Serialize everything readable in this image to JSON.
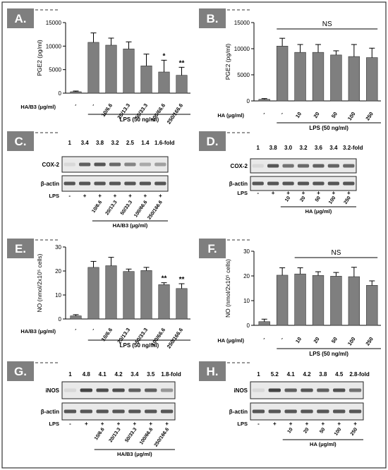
{
  "panels": [
    {
      "id": "A",
      "label": "A."
    },
    {
      "id": "B",
      "label": "B."
    },
    {
      "id": "C",
      "label": "C."
    },
    {
      "id": "D",
      "label": "D."
    },
    {
      "id": "E",
      "label": "E."
    },
    {
      "id": "F",
      "label": "F."
    },
    {
      "id": "G",
      "label": "G."
    },
    {
      "id": "H",
      "label": "H."
    }
  ],
  "chart_data": [
    {
      "panel": "A",
      "type": "bar",
      "ylabel": "PGE2 (pg/ml)",
      "row_label": "HA/B3 (μg/ml)",
      "categories": [
        "-",
        "-",
        "10/6.6",
        "20/13.3",
        "50/33.3",
        "100/66.6",
        "250/166.6"
      ],
      "values": [
        300,
        10800,
        10200,
        9400,
        5800,
        4500,
        3800
      ],
      "errors": [
        150,
        2000,
        1500,
        1500,
        2500,
        2500,
        1700
      ],
      "annotations": [
        "",
        "",
        "",
        "",
        "",
        "*",
        "**"
      ],
      "ylim": [
        0,
        15000
      ],
      "yticks": [
        "0",
        "5000",
        "10000",
        "15000"
      ],
      "lps_label": "LPS (50 ng/ml)",
      "lps_start": 1,
      "bar_color": "#7f7f7f"
    },
    {
      "panel": "B",
      "type": "bar",
      "ylabel": "PGE2 (pg/ml)",
      "row_label": "HA (μg/ml)",
      "categories": [
        "-",
        "-",
        "10",
        "20",
        "50",
        "100",
        "250"
      ],
      "values": [
        300,
        10500,
        9300,
        9300,
        8800,
        8500,
        8300
      ],
      "errors": [
        150,
        1500,
        1500,
        1500,
        800,
        2300,
        1800
      ],
      "annotations": [
        "",
        "",
        "",
        "",
        "",
        "",
        ""
      ],
      "ns_label": "NS",
      "ns_range": [
        1,
        6
      ],
      "ylim": [
        0,
        15000
      ],
      "yticks": [
        "0",
        "5000",
        "10000",
        "15000"
      ],
      "lps_label": "LPS (50 ng/ml)",
      "lps_start": 1,
      "bar_color": "#7f7f7f"
    },
    {
      "panel": "E",
      "type": "bar",
      "ylabel": "NO (nmol/2x10⁵ cells)",
      "row_label": "HA/B3 (μg/ml)",
      "categories": [
        "-",
        "-",
        "10/6.6",
        "20/13.3",
        "50/33.3",
        "100/66.6",
        "250/166.6"
      ],
      "values": [
        1.3,
        21.5,
        22.2,
        19.8,
        20.2,
        14.3,
        12.7
      ],
      "errors": [
        0.5,
        2.5,
        3.5,
        1.0,
        1.3,
        0.8,
        2.0
      ],
      "annotations": [
        "",
        "",
        "",
        "",
        "",
        "**",
        "**"
      ],
      "ylim": [
        0,
        30
      ],
      "yticks": [
        "0",
        "10",
        "20",
        "30"
      ],
      "lps_label": "LPS (50 ng/ml)",
      "lps_start": 1,
      "bar_color": "#7f7f7f"
    },
    {
      "panel": "F",
      "type": "bar",
      "ylabel": "NO (nmol/2x10⁵ cells)",
      "row_label": "HA (μg/ml)",
      "categories": [
        "-",
        "-",
        "10",
        "20",
        "50",
        "100",
        "250"
      ],
      "values": [
        1.5,
        20.3,
        20.8,
        20.2,
        19.9,
        19.7,
        16.2
      ],
      "errors": [
        1.0,
        3.0,
        2.5,
        1.5,
        1.5,
        3.8,
        1.8
      ],
      "annotations": [
        "",
        "",
        "",
        "",
        "",
        "",
        ""
      ],
      "ns_label": "NS",
      "ns_range": [
        2,
        6
      ],
      "ylim": [
        0,
        30
      ],
      "yticks": [
        "0",
        "10",
        "20",
        "30"
      ],
      "lps_label": "LPS (50 ng/ml)",
      "lps_start": 1,
      "bar_color": "#7f7f7f"
    }
  ],
  "blots": [
    {
      "panel": "C",
      "folds": [
        "1",
        "3.4",
        "3.8",
        "3.2",
        "2.5",
        "1.4",
        "1.6-fold"
      ],
      "band_intensity": [
        0.05,
        0.7,
        0.75,
        0.65,
        0.5,
        0.3,
        0.35
      ],
      "rows": [
        {
          "label": "COX-2",
          "arrow": true
        },
        {
          "label": "β-actin",
          "arrow": true
        }
      ],
      "lps_row": [
        "-",
        "+",
        "+",
        "+",
        "+",
        "+",
        "+"
      ],
      "doses": [
        "10/6.6",
        "20/13.3",
        "50/33.3",
        "100/66.6",
        "250/166.6"
      ],
      "dose_label": "HA/B3 (μg/ml)"
    },
    {
      "panel": "D",
      "folds": [
        "1",
        "3.8",
        "3.0",
        "3.2",
        "3.6",
        "3.4",
        "3.2-fold"
      ],
      "band_intensity": [
        0.05,
        0.75,
        0.6,
        0.65,
        0.7,
        0.68,
        0.65
      ],
      "rows": [
        {
          "label": "COX-2",
          "arrow": true
        },
        {
          "label": "β-actin",
          "arrow": true
        }
      ],
      "lps_row": [
        "-",
        "+",
        "+",
        "+",
        "+",
        "+",
        "+"
      ],
      "doses": [
        "10",
        "20",
        "50",
        "100",
        "250"
      ],
      "dose_label": "HA (μg/ml)"
    },
    {
      "panel": "G",
      "folds": [
        "1",
        "4.8",
        "4.1",
        "4.2",
        "3.4",
        "3.5",
        "1.8-fold"
      ],
      "band_intensity": [
        0.05,
        0.85,
        0.8,
        0.8,
        0.7,
        0.7,
        0.4
      ],
      "rows": [
        {
          "label": "iNOS",
          "arrow": false
        },
        {
          "label": "β-actin",
          "arrow": false
        }
      ],
      "lps_row": [
        "-",
        "+",
        "+",
        "+",
        "+",
        "+",
        "+"
      ],
      "doses": [
        "10/6.6",
        "20/13.3",
        "50/33.3",
        "100/66.6",
        "250/166.6"
      ],
      "dose_label": "HA/B3 (μg/ml)"
    },
    {
      "panel": "H",
      "folds": [
        "1",
        "5.2",
        "4.1",
        "4.2",
        "3.8",
        "4.5",
        "2.8-fold"
      ],
      "band_intensity": [
        0.05,
        0.85,
        0.7,
        0.75,
        0.7,
        0.78,
        0.6
      ],
      "rows": [
        {
          "label": "iNOS",
          "arrow": false
        },
        {
          "label": "β-actin",
          "arrow": false
        }
      ],
      "lps_row": [
        "-",
        "+",
        "+",
        "+",
        "+",
        "+",
        "+"
      ],
      "doses": [
        "10",
        "20",
        "50",
        "100",
        "250"
      ],
      "dose_label": "HA (μg/ml)"
    }
  ]
}
